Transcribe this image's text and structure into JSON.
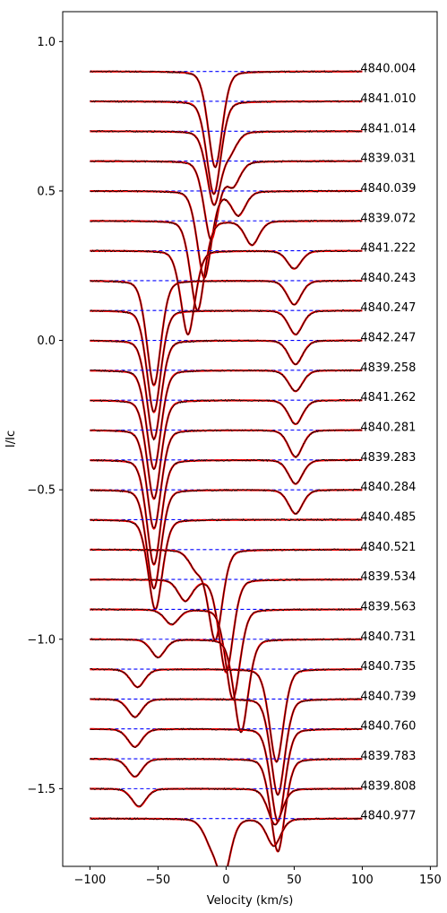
{
  "chart_data": {
    "type": "line",
    "title": "",
    "xlabel": "Velocity (km/s)",
    "ylabel": "I/Ic",
    "xlim": [
      -120,
      155
    ],
    "ylim": [
      -1.76,
      1.1
    ],
    "xticks": [
      -100,
      -50,
      0,
      50,
      100,
      150
    ],
    "yticks": [
      -1.5,
      -1.0,
      -0.5,
      0.0,
      0.5,
      1.0
    ],
    "xtick_labels": [
      "−100",
      "−50",
      "0",
      "50",
      "100",
      "150"
    ],
    "ytick_labels": [
      "−1.5",
      "−1.0",
      "−0.5",
      "0.0",
      "0.5",
      "1.0"
    ],
    "velocity_range": [
      -100,
      100
    ],
    "line_width_sigma": 5.5,
    "colors": {
      "observed": "#000000",
      "model": "#ff0000",
      "continuum": "#0000ff"
    },
    "series": [
      {
        "label": "4840.004",
        "offset": 0.9,
        "components": [
          {
            "v": -8,
            "depth": 0.32
          }
        ]
      },
      {
        "label": "4841.010",
        "offset": 0.8,
        "components": [
          {
            "v": -9,
            "depth": 0.31
          }
        ]
      },
      {
        "label": "4841.014",
        "offset": 0.7,
        "components": [
          {
            "v": -9,
            "depth": 0.24
          },
          {
            "v": 3,
            "depth": 0.06
          }
        ]
      },
      {
        "label": "4839.031",
        "offset": 0.6,
        "components": [
          {
            "v": -11,
            "depth": 0.26
          },
          {
            "v": 5,
            "depth": 0.08
          }
        ]
      },
      {
        "label": "4840.039",
        "offset": 0.5,
        "components": [
          {
            "v": -16,
            "depth": 0.29
          },
          {
            "v": 9,
            "depth": 0.08
          }
        ]
      },
      {
        "label": "4839.072",
        "offset": 0.4,
        "components": [
          {
            "v": -21,
            "depth": 0.3
          },
          {
            "v": 19,
            "depth": 0.08
          }
        ]
      },
      {
        "label": "4841.222",
        "offset": 0.3,
        "components": [
          {
            "v": -28,
            "depth": 0.28
          },
          {
            "v": 50,
            "depth": 0.06
          }
        ]
      },
      {
        "label": "4840.243",
        "offset": 0.2,
        "components": [
          {
            "v": -53,
            "depth": 0.35
          },
          {
            "v": 50,
            "depth": 0.08
          }
        ]
      },
      {
        "label": "4840.247",
        "offset": 0.1,
        "components": [
          {
            "v": -53,
            "depth": 0.34
          },
          {
            "v": 51,
            "depth": 0.08
          }
        ]
      },
      {
        "label": "4842.247",
        "offset": 0.0,
        "components": [
          {
            "v": -53,
            "depth": 0.33
          },
          {
            "v": 51,
            "depth": 0.08
          }
        ]
      },
      {
        "label": "4839.258",
        "offset": -0.1,
        "components": [
          {
            "v": -53,
            "depth": 0.33
          },
          {
            "v": 51,
            "depth": 0.07
          }
        ]
      },
      {
        "label": "4841.262",
        "offset": -0.2,
        "components": [
          {
            "v": -53,
            "depth": 0.33
          },
          {
            "v": 51,
            "depth": 0.08
          }
        ]
      },
      {
        "label": "4840.281",
        "offset": -0.3,
        "components": [
          {
            "v": -53,
            "depth": 0.33
          },
          {
            "v": 51,
            "depth": 0.09
          }
        ]
      },
      {
        "label": "4839.283",
        "offset": -0.4,
        "components": [
          {
            "v": -53,
            "depth": 0.35
          },
          {
            "v": 51,
            "depth": 0.08
          }
        ]
      },
      {
        "label": "4840.284",
        "offset": -0.5,
        "components": [
          {
            "v": -53,
            "depth": 0.33
          },
          {
            "v": 51,
            "depth": 0.08
          }
        ]
      },
      {
        "label": "4840.485",
        "offset": -0.6,
        "components": [
          {
            "v": -52,
            "depth": 0.3
          }
        ]
      },
      {
        "label": "4840.521",
        "offset": -0.7,
        "components": [
          {
            "v": -8,
            "depth": 0.3
          },
          {
            "v": -22,
            "depth": 0.06
          }
        ]
      },
      {
        "label": "4839.534",
        "offset": -0.8,
        "components": [
          {
            "v": 0,
            "depth": 0.31
          },
          {
            "v": -30,
            "depth": 0.07
          }
        ]
      },
      {
        "label": "4839.563",
        "offset": -0.9,
        "components": [
          {
            "v": 5,
            "depth": 0.3
          },
          {
            "v": -40,
            "depth": 0.05
          }
        ]
      },
      {
        "label": "4840.731",
        "offset": -1.0,
        "components": [
          {
            "v": 11,
            "depth": 0.31
          },
          {
            "v": -50,
            "depth": 0.06
          }
        ]
      },
      {
        "label": "4840.735",
        "offset": -1.1,
        "components": [
          {
            "v": 37,
            "depth": 0.31
          },
          {
            "v": -65,
            "depth": 0.06
          }
        ]
      },
      {
        "label": "4840.739",
        "offset": -1.2,
        "components": [
          {
            "v": 38,
            "depth": 0.32
          },
          {
            "v": -67,
            "depth": 0.06
          }
        ]
      },
      {
        "label": "4840.760",
        "offset": -1.3,
        "components": [
          {
            "v": 38,
            "depth": 0.31
          },
          {
            "v": -67,
            "depth": 0.06
          }
        ]
      },
      {
        "label": "4839.783",
        "offset": -1.4,
        "components": [
          {
            "v": 38,
            "depth": 0.31
          },
          {
            "v": -67,
            "depth": 0.06
          }
        ]
      },
      {
        "label": "4839.808",
        "offset": -1.5,
        "components": [
          {
            "v": 36,
            "depth": 0.12
          },
          {
            "v": -64,
            "depth": 0.06
          }
        ]
      },
      {
        "label": "4840.977",
        "offset": -1.6,
        "components": [
          {
            "v": 35,
            "depth": 0.09
          },
          {
            "v": -2,
            "depth": 0.19
          },
          {
            "v": -12,
            "depth": 0.06
          }
        ]
      }
    ]
  }
}
